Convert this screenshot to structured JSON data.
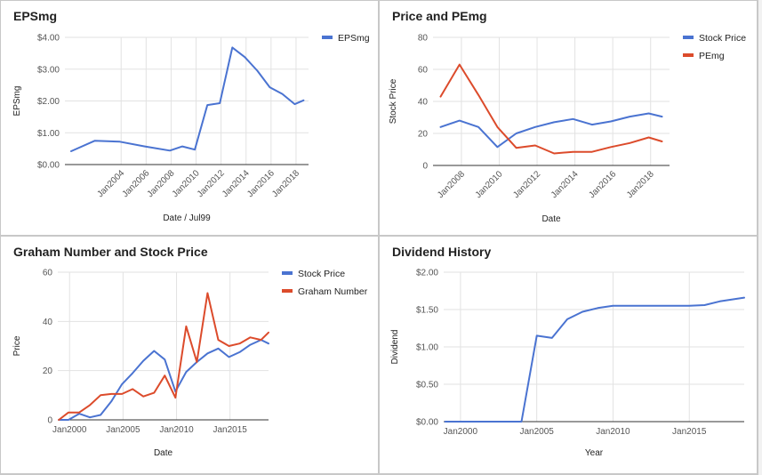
{
  "chart_data": [
    {
      "type": "line",
      "title": "EPSmg",
      "xlabel": "Date / Jul99",
      "ylabel": "EPSmg",
      "x_type": "date",
      "xlim": [
        1999.5,
        2019.0
      ],
      "ylim": [
        0,
        4
      ],
      "yticks": [
        0,
        1,
        2,
        3,
        4
      ],
      "ytick_labels": [
        "$0.00",
        "$1.00",
        "$2.00",
        "$3.00",
        "$4.00"
      ],
      "xticks": [
        2004,
        2006,
        2008,
        2010,
        2012,
        2014,
        2016,
        2018
      ],
      "xtick_labels": [
        "Jan2004",
        "Jan2006",
        "Jan2008",
        "Jan2010",
        "Jan2012",
        "Jan2014",
        "Jan2016",
        "Jan2018"
      ],
      "xtick_rotate": true,
      "grid": true,
      "legend_position": "right",
      "series": [
        {
          "name": "EPSmg",
          "color": "#4a73d1",
          "x": [
            2000.0,
            2001.9,
            2003.9,
            2005.9,
            2007.9,
            2008.9,
            2009.9,
            2010.9,
            2011.9,
            2012.9,
            2013.9,
            2014.9,
            2015.9,
            2016.9,
            2017.9,
            2018.6
          ],
          "y": [
            0.42,
            0.75,
            0.72,
            0.57,
            0.44,
            0.57,
            0.47,
            1.87,
            1.93,
            3.68,
            3.38,
            2.95,
            2.43,
            2.22,
            1.9,
            2.02
          ]
        }
      ]
    },
    {
      "type": "line",
      "title": "Price and PEmg",
      "xlabel": "Date",
      "ylabel": "Stock Price",
      "x_type": "date",
      "xlim": [
        2006.5,
        2019.0
      ],
      "ylim": [
        0,
        80
      ],
      "yticks": [
        0,
        20,
        40,
        60,
        80
      ],
      "ytick_labels": [
        "0",
        "20",
        "40",
        "60",
        "80"
      ],
      "xticks": [
        2008,
        2010,
        2012,
        2014,
        2016,
        2018
      ],
      "xtick_labels": [
        "Jan2008",
        "Jan2010",
        "Jan2012",
        "Jan2014",
        "Jan2016",
        "Jan2018"
      ],
      "xtick_rotate": true,
      "grid": true,
      "legend_position": "right",
      "series": [
        {
          "name": "Stock Price",
          "color": "#4a73d1",
          "x": [
            2006.9,
            2007.9,
            2008.9,
            2009.9,
            2010.9,
            2011.9,
            2012.9,
            2013.9,
            2014.9,
            2015.9,
            2016.9,
            2017.9,
            2018.6
          ],
          "y": [
            24,
            28,
            24,
            11.5,
            20,
            24,
            27,
            29,
            25.5,
            27.5,
            30.5,
            32.5,
            30.5
          ]
        },
        {
          "name": "PEmg",
          "color": "#dc4b2b",
          "x": [
            2006.9,
            2007.9,
            2008.9,
            2009.9,
            2010.9,
            2011.9,
            2012.9,
            2013.9,
            2014.9,
            2015.9,
            2016.9,
            2017.9,
            2018.6
          ],
          "y": [
            43,
            63,
            44,
            24,
            11,
            12.5,
            7.5,
            8.5,
            8.5,
            11.5,
            14,
            17.5,
            15
          ]
        }
      ]
    },
    {
      "type": "line",
      "title": "Graham Number and Stock Price",
      "xlabel": "Date",
      "ylabel": "Price",
      "x_type": "date",
      "xlim": [
        1998.9,
        2018.6
      ],
      "ylim": [
        0,
        60
      ],
      "yticks": [
        0,
        20,
        40,
        60
      ],
      "ytick_labels": [
        "0",
        "20",
        "40",
        "60"
      ],
      "xticks": [
        2000,
        2005,
        2010,
        2015
      ],
      "xtick_labels": [
        "Jan2000",
        "Jan2005",
        "Jan2010",
        "Jan2015"
      ],
      "xtick_rotate": false,
      "grid": true,
      "legend_position": "right",
      "series": [
        {
          "name": "Stock Price",
          "color": "#4a73d1",
          "x": [
            1999.0,
            1999.9,
            2000.9,
            2001.9,
            2002.9,
            2003.9,
            2004.9,
            2005.9,
            2006.9,
            2007.9,
            2008.9,
            2009.9,
            2010.9,
            2011.9,
            2012.9,
            2013.9,
            2014.9,
            2015.9,
            2016.9,
            2017.9,
            2018.6
          ],
          "y": [
            0,
            0,
            2.5,
            1,
            2,
            7.5,
            14.5,
            19,
            24,
            28,
            24.5,
            11.5,
            19.5,
            23.5,
            27,
            29,
            25.5,
            27.5,
            30.5,
            32.5,
            31
          ]
        },
        {
          "name": "Graham Number",
          "color": "#dc4b2b",
          "x": [
            1999.0,
            1999.9,
            2000.9,
            2001.9,
            2002.9,
            2003.9,
            2004.9,
            2005.9,
            2006.9,
            2007.9,
            2008.9,
            2009.9,
            2010.9,
            2011.9,
            2012.9,
            2013.9,
            2014.9,
            2015.9,
            2016.9,
            2017.9,
            2018.6
          ],
          "y": [
            0,
            3,
            3,
            6,
            10,
            10.5,
            10.5,
            12.5,
            9.5,
            11,
            18,
            9,
            38,
            23.5,
            51.5,
            32.5,
            30,
            31,
            33.5,
            32.5,
            35.5
          ]
        }
      ]
    },
    {
      "type": "line",
      "title": "Dividend History",
      "xlabel": "Year",
      "ylabel": "Dividend",
      "x_type": "date",
      "xlim": [
        1998.9,
        2018.6
      ],
      "ylim": [
        0,
        2
      ],
      "yticks": [
        0,
        0.5,
        1,
        1.5,
        2
      ],
      "ytick_labels": [
        "$0.00",
        "$0.50",
        "$1.00",
        "$1.50",
        "$2.00"
      ],
      "xticks": [
        2000,
        2005,
        2010,
        2015
      ],
      "xtick_labels": [
        "Jan2000",
        "Jan2005",
        "Jan2010",
        "Jan2015"
      ],
      "xtick_rotate": false,
      "grid": true,
      "legend_position": "none",
      "series": [
        {
          "name": "",
          "color": "#4a73d1",
          "x": [
            1999.0,
            2000.0,
            2001.0,
            2002.0,
            2003.0,
            2004.0,
            2005.0,
            2006.0,
            2007.0,
            2008.0,
            2009.0,
            2010.0,
            2011.0,
            2012.0,
            2013.0,
            2014.0,
            2015.0,
            2016.0,
            2017.0,
            2018.6
          ],
          "y": [
            0,
            0,
            0,
            0,
            0,
            0,
            1.15,
            1.12,
            1.37,
            1.47,
            1.52,
            1.55,
            1.55,
            1.55,
            1.55,
            1.55,
            1.55,
            1.56,
            1.61,
            1.66
          ]
        }
      ]
    }
  ]
}
